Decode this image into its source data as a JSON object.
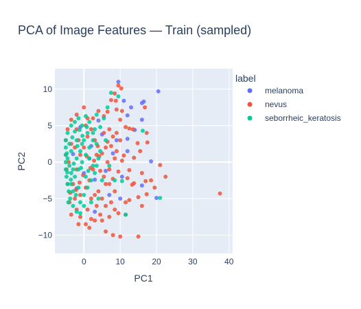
{
  "chart_data": {
    "type": "scatter",
    "title": "PCA of Image Features — Train (sampled)",
    "xlabel": "PC1",
    "ylabel": "PC2",
    "xlim": [
      -8,
      41
    ],
    "ylim": [
      -12.5,
      12.8
    ],
    "xticks": [
      0,
      10,
      20,
      30,
      40
    ],
    "yticks": [
      -10,
      -5,
      0,
      5,
      10
    ],
    "grid": true,
    "legend": {
      "title": "label",
      "placement": "right"
    },
    "colors": {
      "melanoma": "#636efa",
      "nevus": "#ef553b",
      "seborrheic_keratosis": "#00cc96",
      "plot_bg": "#e5ecf6",
      "grid": "#ffffff",
      "text": "#2a3f5f"
    },
    "series": [
      {
        "name": "melanoma",
        "color": "#636efa",
        "points": [
          [
            20.5,
            9.7
          ],
          [
            16.5,
            8.3
          ],
          [
            16,
            8.1
          ],
          [
            11,
            8.4
          ],
          [
            9.5,
            11
          ],
          [
            13,
            7.5
          ],
          [
            12,
            6.4
          ],
          [
            16,
            5.8
          ],
          [
            14,
            4.4
          ],
          [
            12,
            3.2
          ],
          [
            20,
            -4.9
          ],
          [
            18.5,
            0.1
          ],
          [
            16,
            -3.2
          ],
          [
            12,
            1.5
          ],
          [
            10.5,
            -2
          ],
          [
            9,
            3
          ],
          [
            7,
            -4.5
          ],
          [
            4,
            5.7
          ],
          [
            5,
            3.8
          ],
          [
            3,
            -6.8
          ],
          [
            2,
            2.2
          ],
          [
            -1,
            4.8
          ],
          [
            -2,
            -3.6
          ],
          [
            1.5,
            0.5
          ],
          [
            6,
            -1.2
          ],
          [
            8,
            1.2
          ],
          [
            10,
            -5
          ],
          [
            3,
            -2.4
          ],
          [
            -3,
            1.1
          ],
          [
            0,
            -1.5
          ]
        ]
      },
      {
        "name": "nevus",
        "color": "#ef553b",
        "points": [
          [
            37.5,
            -4.3
          ],
          [
            22.5,
            -2
          ],
          [
            21,
            -0.4
          ],
          [
            19.5,
            -3.5
          ],
          [
            18.5,
            -2.5
          ],
          [
            17,
            -2.6
          ],
          [
            16,
            -1.5
          ],
          [
            15.5,
            1.5
          ],
          [
            14.8,
            2.6
          ],
          [
            13.8,
            -2.9
          ],
          [
            13.3,
            -3.1
          ],
          [
            15,
            -4.8
          ],
          [
            17.3,
            -4.4
          ],
          [
            16,
            -6
          ],
          [
            12.5,
            -5.2
          ],
          [
            11.5,
            -5.5
          ],
          [
            13.5,
            4.5
          ],
          [
            12.5,
            4.6
          ],
          [
            11.5,
            4.8
          ],
          [
            10,
            5.8
          ],
          [
            9,
            7.2
          ],
          [
            8.8,
            8.4
          ],
          [
            8.5,
            9.4
          ],
          [
            9.5,
            10.5
          ],
          [
            10.5,
            7
          ],
          [
            10.3,
            10.1
          ],
          [
            7.5,
            8.5
          ],
          [
            6.5,
            6.9
          ],
          [
            5.5,
            6.3
          ],
          [
            16.8,
            7.5
          ],
          [
            17.3,
            4
          ],
          [
            17.5,
            2.7
          ],
          [
            10,
            3
          ],
          [
            9,
            1.5
          ],
          [
            11,
            0.9
          ],
          [
            10.5,
            0.2
          ],
          [
            9.5,
            -1.3
          ],
          [
            8,
            -2.3
          ],
          [
            11.5,
            -7.2
          ],
          [
            7,
            -7.5
          ],
          [
            6,
            -9.5
          ],
          [
            8,
            -10
          ],
          [
            10,
            -10.2
          ],
          [
            15,
            -10.2
          ],
          [
            12.5,
            -1.1
          ],
          [
            13.8,
            0.6
          ],
          [
            12,
            -2.2
          ],
          [
            8.5,
            -4
          ],
          [
            7,
            -3
          ],
          [
            6.5,
            2.8
          ],
          [
            5,
            1.2
          ],
          [
            4.5,
            -1.2
          ],
          [
            3.5,
            -6
          ],
          [
            2,
            -7.8
          ],
          [
            0.5,
            -8.5
          ],
          [
            -1.5,
            -8.5
          ],
          [
            -3.5,
            -7.2
          ],
          [
            -4,
            -5.5
          ],
          [
            -4.5,
            -3
          ],
          [
            -4.8,
            -1
          ],
          [
            -5,
            1
          ],
          [
            -5,
            3
          ],
          [
            -4.5,
            4.5
          ],
          [
            -3.5,
            5.8
          ],
          [
            -2,
            6.5
          ],
          [
            0,
            7.5
          ],
          [
            1,
            6
          ],
          [
            2,
            4.5
          ],
          [
            3,
            3
          ],
          [
            3.5,
            1
          ],
          [
            2.5,
            -1
          ],
          [
            1.5,
            -2.5
          ],
          [
            0.5,
            -3.5
          ],
          [
            -1,
            -4.5
          ],
          [
            -2.5,
            -5
          ],
          [
            -3,
            -3
          ],
          [
            -2,
            -1
          ],
          [
            -1,
            1
          ],
          [
            0,
            2
          ],
          [
            1,
            3.5
          ],
          [
            -1.5,
            3
          ],
          [
            -2.5,
            2
          ],
          [
            4,
            -4
          ],
          [
            5,
            -5
          ],
          [
            6,
            -6
          ],
          [
            7.5,
            -5.5
          ],
          [
            2,
            -5
          ],
          [
            3,
            -4.5
          ],
          [
            1,
            -6.5
          ],
          [
            -2,
            -6.5
          ],
          [
            -3.8,
            -4.2
          ],
          [
            -4.2,
            0
          ],
          [
            -3.5,
            2.5
          ],
          [
            -2,
            4.5
          ],
          [
            0.5,
            5
          ],
          [
            2.5,
            6
          ],
          [
            4,
            7
          ],
          [
            5.5,
            4
          ],
          [
            6,
            2
          ],
          [
            6.5,
            0
          ],
          [
            5.5,
            -2
          ],
          [
            4.2,
            0.8
          ],
          [
            3.8,
            2.2
          ],
          [
            2.8,
            0.2
          ],
          [
            1.8,
            -0.8
          ],
          [
            0.8,
            0.8
          ],
          [
            -0.2,
            -1.8
          ],
          [
            -1.2,
            -2.8
          ],
          [
            -2.2,
            -3.8
          ],
          [
            8.5,
            -6.5
          ],
          [
            9.5,
            -7
          ],
          [
            4.5,
            -7.2
          ],
          [
            3,
            -8
          ],
          [
            1.5,
            -9
          ],
          [
            -1,
            -7.5
          ],
          [
            7,
            4.5
          ],
          [
            8,
            3.5
          ],
          [
            9,
            4
          ],
          [
            7.5,
            2.2
          ],
          [
            8.5,
            0.5
          ],
          [
            7,
            -1
          ],
          [
            6,
            -3
          ],
          [
            5,
            -8
          ]
        ]
      },
      {
        "name": "seborrheic_keratosis",
        "color": "#00cc96",
        "points": [
          [
            21,
            -4.9
          ],
          [
            16.2,
            4.3
          ],
          [
            11.5,
            -7.2
          ],
          [
            10.5,
            -2.6
          ],
          [
            9.5,
            9
          ],
          [
            7.5,
            9.5
          ],
          [
            6.5,
            7.5
          ],
          [
            5.5,
            6
          ],
          [
            4.5,
            4.8
          ],
          [
            3.5,
            6.5
          ],
          [
            2.5,
            4
          ],
          [
            1.5,
            5.5
          ],
          [
            0.5,
            6.3
          ],
          [
            -0.5,
            5
          ],
          [
            -1.5,
            6
          ],
          [
            -2.5,
            5.5
          ],
          [
            -3.5,
            5
          ],
          [
            -4.5,
            4
          ],
          [
            -5,
            3
          ],
          [
            -5,
            2
          ],
          [
            -5,
            1
          ],
          [
            -5,
            0
          ],
          [
            -5,
            -1
          ],
          [
            -4.8,
            -2
          ],
          [
            -4.5,
            -3
          ],
          [
            -4.2,
            -4
          ],
          [
            -3.8,
            -5
          ],
          [
            -3,
            -6
          ],
          [
            -2,
            -6.8
          ],
          [
            -1,
            -5.5
          ],
          [
            0,
            -4.5
          ],
          [
            1,
            -3.5
          ],
          [
            2,
            -2.5
          ],
          [
            3,
            -1.5
          ],
          [
            3.5,
            -0.5
          ],
          [
            4,
            0.5
          ],
          [
            4.5,
            1.5
          ],
          [
            3.5,
            2.5
          ],
          [
            2.5,
            3
          ],
          [
            1.5,
            2
          ],
          [
            0.5,
            1
          ],
          [
            -0.5,
            0
          ],
          [
            -1.5,
            -1
          ],
          [
            -2.5,
            -2
          ],
          [
            -3.5,
            -3
          ],
          [
            -3,
            -1
          ],
          [
            -2,
            0.5
          ],
          [
            -1,
            1.5
          ],
          [
            0,
            3
          ],
          [
            1,
            4
          ],
          [
            -2,
            3
          ],
          [
            -3.5,
            1.5
          ],
          [
            -4,
            -0.5
          ],
          [
            -1.5,
            -3.5
          ],
          [
            0.5,
            -2
          ],
          [
            2.5,
            -0.5
          ],
          [
            1.5,
            0.5
          ],
          [
            -0.5,
            2.5
          ],
          [
            -2.5,
            4.2
          ],
          [
            -4,
            2.5
          ],
          [
            -4.5,
            0.5
          ],
          [
            -3.5,
            -1.5
          ],
          [
            -2.2,
            -4.5
          ],
          [
            0,
            -6
          ],
          [
            2,
            -5.5
          ],
          [
            -4.3,
            -5.5
          ],
          [
            -1,
            -7
          ],
          [
            3,
            4.5
          ],
          [
            6,
            3
          ],
          [
            5,
            -2.5
          ],
          [
            7,
            -0.5
          ],
          [
            8.5,
            -2.5
          ],
          [
            4,
            -5
          ],
          [
            -4.7,
            1.2
          ],
          [
            -3.2,
            3.4
          ],
          [
            -1.2,
            4.4
          ],
          [
            0.8,
            4.8
          ],
          [
            -3.6,
            -2.4
          ],
          [
            -4.6,
            -1.4
          ],
          [
            -2.8,
            -0.2
          ],
          [
            -0.8,
            -0.8
          ],
          [
            1.2,
            -1.2
          ],
          [
            -1.8,
            2.2
          ],
          [
            -3,
            -4
          ],
          [
            -0.4,
            3.6
          ]
        ]
      }
    ]
  }
}
